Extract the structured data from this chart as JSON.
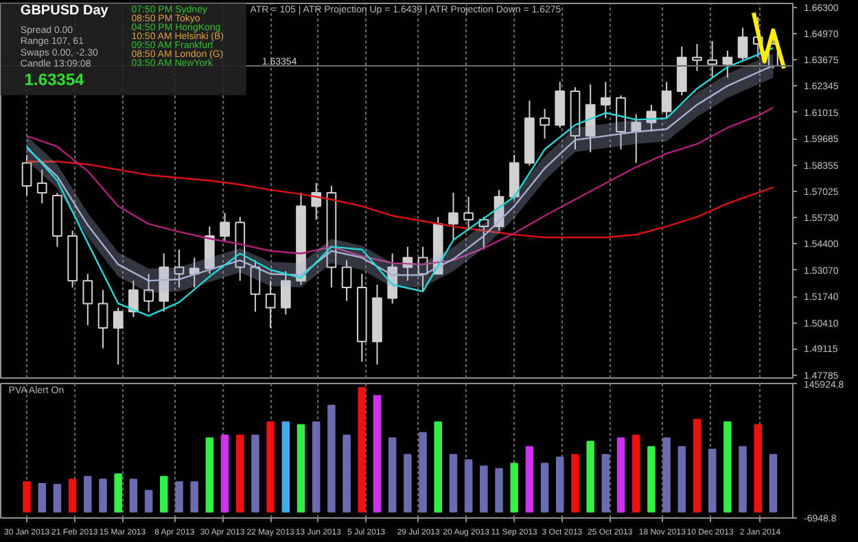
{
  "chart_data": [
    {
      "type": "candlestick",
      "title": "GBPUSD  Day",
      "annotations": [
        "ATR = 105  |  ATR Projection Up = 1.6439  |  ATR Projection Down = 1.6275",
        "Spread   0.00",
        "Range   107, 61",
        "Swaps   0.00, -2.30",
        "Candle   13:09:08",
        "1.63354",
        "07:50 PM   Sydney",
        "08:50 PM   Tokyo",
        "04:50 PM   HongKong",
        "10:50 AM   Helsinki  (B)",
        "09:50 AM   Frankfurt",
        "08:50 AM   London  (G)",
        "03:50 AM   NewYork"
      ],
      "color": "#d0d0d0",
      "x": [
        "2013-01-30",
        "2013-02-06",
        "2013-02-13",
        "2013-02-20",
        "2013-02-27",
        "2013-03-06",
        "2013-03-13",
        "2013-03-20",
        "2013-03-27",
        "2013-04-03",
        "2013-04-10",
        "2013-04-17",
        "2013-04-24",
        "2013-05-01",
        "2013-05-08",
        "2013-05-15",
        "2013-05-22",
        "2013-05-29",
        "2013-06-05",
        "2013-06-12",
        "2013-06-19",
        "2013-06-26",
        "2013-07-03",
        "2013-07-10",
        "2013-07-17",
        "2013-07-24",
        "2013-07-31",
        "2013-08-07",
        "2013-08-14",
        "2013-08-21",
        "2013-08-28",
        "2013-09-04",
        "2013-09-11",
        "2013-09-18",
        "2013-09-25",
        "2013-10-02",
        "2013-10-09",
        "2013-10-16",
        "2013-10-23",
        "2013-10-30",
        "2013-11-06",
        "2013-11-13",
        "2013-11-20",
        "2013-11-27",
        "2013-12-04",
        "2013-12-11",
        "2013-12-18",
        "2013-12-25",
        "2014-01-01",
        "2014-01-08"
      ],
      "ohlc": [
        [
          1.5847,
          1.5888,
          1.5683,
          1.5731
        ],
        [
          1.5745,
          1.5813,
          1.5643,
          1.5697
        ],
        [
          1.5683,
          1.5697,
          1.5425,
          1.5479
        ],
        [
          1.5479,
          1.5506,
          1.522,
          1.5254
        ],
        [
          1.5254,
          1.5288,
          1.503,
          1.5139
        ],
        [
          1.5139,
          1.5207,
          1.4914,
          1.5016
        ],
        [
          1.5016,
          1.5118,
          1.4832,
          1.5098
        ],
        [
          1.5098,
          1.5254,
          1.5071,
          1.5207
        ],
        [
          1.5207,
          1.5288,
          1.5098,
          1.5152
        ],
        [
          1.5152,
          1.5391,
          1.5098,
          1.5322
        ],
        [
          1.5322,
          1.5411,
          1.522,
          1.5288
        ],
        [
          1.5288,
          1.537,
          1.522,
          1.5316
        ],
        [
          1.5316,
          1.5527,
          1.5288,
          1.5479
        ],
        [
          1.5479,
          1.5595,
          1.5452,
          1.5547
        ],
        [
          1.5547,
          1.5575,
          1.5254,
          1.5322
        ],
        [
          1.5322,
          1.5357,
          1.5098,
          1.5186
        ],
        [
          1.5186,
          1.5254,
          1.5016,
          1.5118
        ],
        [
          1.5118,
          1.5302,
          1.5084,
          1.5254
        ],
        [
          1.5254,
          1.5697,
          1.5234,
          1.5629
        ],
        [
          1.5629,
          1.5745,
          1.5561,
          1.5697
        ],
        [
          1.5697,
          1.5731,
          1.522,
          1.5322
        ],
        [
          1.5322,
          1.5357,
          1.5152,
          1.522
        ],
        [
          1.522,
          1.5288,
          1.4846,
          1.4948
        ],
        [
          1.4948,
          1.5234,
          1.4832,
          1.5166
        ],
        [
          1.5166,
          1.5391,
          1.5139,
          1.5322
        ],
        [
          1.5322,
          1.5425,
          1.5254,
          1.537
        ],
        [
          1.537,
          1.5425,
          1.52,
          1.5288
        ],
        [
          1.5288,
          1.5575,
          1.5288,
          1.554
        ],
        [
          1.554,
          1.5697,
          1.5459,
          1.5595
        ],
        [
          1.5595,
          1.5677,
          1.5506,
          1.5561
        ],
        [
          1.5561,
          1.5575,
          1.5411,
          1.5527
        ],
        [
          1.5527,
          1.5711,
          1.5506,
          1.5677
        ],
        [
          1.5677,
          1.5888,
          1.5663,
          1.5847
        ],
        [
          1.5847,
          1.616,
          1.5833,
          1.6072
        ],
        [
          1.6072,
          1.6119,
          1.5969,
          1.6038
        ],
        [
          1.6038,
          1.6255,
          1.6024,
          1.6208
        ],
        [
          1.6208,
          1.6228,
          1.5915,
          1.5983
        ],
        [
          1.5983,
          1.6242,
          1.5901,
          1.614
        ],
        [
          1.614,
          1.6255,
          1.6072,
          1.6174
        ],
        [
          1.6174,
          1.6187,
          1.5915,
          1.6004
        ],
        [
          1.6004,
          1.6092,
          1.5847,
          1.6051
        ],
        [
          1.6051,
          1.614,
          1.6004,
          1.6106
        ],
        [
          1.6106,
          1.6255,
          1.6072,
          1.6208
        ],
        [
          1.6208,
          1.6432,
          1.6187,
          1.6378
        ],
        [
          1.6378,
          1.6446,
          1.631,
          1.6364
        ],
        [
          1.6364,
          1.646,
          1.6276,
          1.6344
        ],
        [
          1.6344,
          1.6412,
          1.6276,
          1.6378
        ],
        [
          1.6378,
          1.6528,
          1.6364,
          1.648
        ],
        [
          1.648,
          1.6582,
          1.6378,
          1.6446
        ],
        [
          1.6446,
          1.648,
          1.6323,
          1.63354
        ]
      ],
      "series": [
        {
          "type": "line",
          "color": "#dd1111",
          "x": [
            "2013-01-30",
            "2013-02-13",
            "2013-02-27",
            "2013-03-13",
            "2013-03-27",
            "2013-04-10",
            "2013-04-24",
            "2013-05-08",
            "2013-05-22",
            "2013-06-05",
            "2013-06-19",
            "2013-07-03",
            "2013-07-17",
            "2013-07-31",
            "2013-08-14",
            "2013-08-28",
            "2013-09-11",
            "2013-09-25",
            "2013-10-09",
            "2013-10-23",
            "2013-11-06",
            "2013-11-20",
            "2013-12-04",
            "2013-12-18",
            "2014-01-01",
            "2014-01-08"
          ],
          "values": [
            1.5854,
            1.5854,
            1.584,
            1.5813,
            1.5786,
            1.5772,
            1.5758,
            1.5738,
            1.5711,
            1.569,
            1.5663,
            1.5629,
            1.5581,
            1.5554,
            1.5527,
            1.5506,
            1.5486,
            1.5472,
            1.5472,
            1.5472,
            1.5486,
            1.5527,
            1.5575,
            1.5643,
            1.5697,
            1.5724
          ]
        },
        {
          "type": "line",
          "color": "#b0207a",
          "x": [
            "2013-01-30",
            "2013-02-13",
            "2013-02-27",
            "2013-03-13",
            "2013-03-27",
            "2013-04-10",
            "2013-04-24",
            "2013-05-08",
            "2013-05-22",
            "2013-06-05",
            "2013-06-19",
            "2013-07-03",
            "2013-07-17",
            "2013-07-31",
            "2013-08-14",
            "2013-08-28",
            "2013-09-11",
            "2013-09-25",
            "2013-10-09",
            "2013-10-23",
            "2013-11-06",
            "2013-11-20",
            "2013-12-04",
            "2013-12-18",
            "2014-01-01",
            "2014-01-08"
          ],
          "values": [
            1.5983,
            1.5929,
            1.5806,
            1.5629,
            1.554,
            1.55,
            1.5466,
            1.5438,
            1.5404,
            1.5391,
            1.5425,
            1.5377,
            1.5343,
            1.5336,
            1.5357,
            1.5418,
            1.5493,
            1.5581,
            1.5663,
            1.5745,
            1.5826,
            1.5894,
            1.5942,
            1.6024,
            1.6085,
            1.6126
          ]
        },
        {
          "type": "line",
          "color": "#a8b0d0",
          "x": [
            "2013-01-30",
            "2013-02-13",
            "2013-02-27",
            "2013-03-13",
            "2013-03-27",
            "2013-04-10",
            "2013-04-24",
            "2013-05-08",
            "2013-05-22",
            "2013-06-05",
            "2013-06-19",
            "2013-07-03",
            "2013-07-17",
            "2013-07-31",
            "2013-08-14",
            "2013-08-28",
            "2013-09-11",
            "2013-09-25",
            "2013-10-09",
            "2013-10-23",
            "2013-11-06",
            "2013-11-20",
            "2013-12-04",
            "2013-12-18",
            "2014-01-01",
            "2014-01-08"
          ],
          "values": [
            1.5922,
            1.5779,
            1.5534,
            1.5336,
            1.5254,
            1.5261,
            1.5309,
            1.5357,
            1.5288,
            1.5282,
            1.5404,
            1.537,
            1.5282,
            1.5282,
            1.5363,
            1.5479,
            1.5629,
            1.582,
            1.5963,
            1.5983,
            1.6004,
            1.6017,
            1.614,
            1.6235,
            1.6303,
            1.6337
          ],
          "lower": [
            1.5861,
            1.5718,
            1.5473,
            1.5275,
            1.5193,
            1.52,
            1.5248,
            1.5296,
            1.5227,
            1.5221,
            1.5343,
            1.5309,
            1.5221,
            1.5221,
            1.5302,
            1.5418,
            1.5568,
            1.5759,
            1.5902,
            1.5922,
            1.5943,
            1.5956,
            1.6079,
            1.6174,
            1.6242,
            1.6276
          ],
          "upper": [
            1.5983,
            1.584,
            1.5595,
            1.5397,
            1.5315,
            1.5322,
            1.537,
            1.5418,
            1.5349,
            1.5343,
            1.5465,
            1.5431,
            1.5343,
            1.5343,
            1.5424,
            1.554,
            1.569,
            1.5881,
            1.6024,
            1.6044,
            1.6065,
            1.6078,
            1.6201,
            1.6296,
            1.6364,
            1.6398
          ]
        },
        {
          "type": "line",
          "color": "#22d8d8",
          "x": [
            "2013-01-30",
            "2013-02-13",
            "2013-02-27",
            "2013-03-13",
            "2013-03-27",
            "2013-04-10",
            "2013-04-24",
            "2013-05-08",
            "2013-05-22",
            "2013-06-05",
            "2013-06-19",
            "2013-07-03",
            "2013-07-17",
            "2013-07-31",
            "2013-08-14",
            "2013-08-28",
            "2013-09-11",
            "2013-09-25",
            "2013-10-09",
            "2013-10-23",
            "2013-11-06",
            "2013-11-20",
            "2013-12-04",
            "2013-12-18",
            "2014-01-01",
            "2014-01-08"
          ],
          "values": [
            1.5929,
            1.5758,
            1.5445,
            1.5139,
            1.5077,
            1.5145,
            1.5275,
            1.5391,
            1.5309,
            1.5268,
            1.5425,
            1.5411,
            1.5234,
            1.52,
            1.5459,
            1.5568,
            1.5677,
            1.5915,
            1.6038,
            1.6099,
            1.6065,
            1.6072,
            1.6221,
            1.633,
            1.6392,
            1.6426
          ]
        },
        {
          "type": "line",
          "color": "#ffee00",
          "x": [
            "2013-12-30",
            "2014-01-04",
            "2014-01-08",
            "2014-01-13"
          ],
          "values": [
            1.6603,
            1.6358,
            1.6514,
            1.6323
          ]
        }
      ],
      "ref_lines": [
        {
          "axis": "y",
          "value": 1.63354,
          "label": "1.63354",
          "color": "#707070"
        }
      ],
      "xlim": [
        "2013-01-18",
        "2014-01-17"
      ],
      "xticks": [
        "2013-01-30",
        "2013-02-21",
        "2013-03-15",
        "2013-04-08",
        "2013-04-30",
        "2013-05-22",
        "2013-06-13",
        "2013-07-05",
        "2013-07-29",
        "2013-08-20",
        "2013-09-11",
        "2013-10-03",
        "2013-10-25",
        "2013-11-18",
        "2013-12-10",
        "2014-01-02"
      ],
      "ylim": [
        1.4764,
        1.665
      ],
      "yticks": [
        {
          "value": 1.663,
          "label": "1.66300"
        },
        {
          "value": 1.6497,
          "label": "1.64970"
        },
        {
          "value": 1.63675,
          "label": "1.63675"
        },
        {
          "value": 1.62345,
          "label": "1.62345"
        },
        {
          "value": 1.61015,
          "label": "1.61015"
        },
        {
          "value": 1.59685,
          "label": "1.59685"
        },
        {
          "value": 1.58355,
          "label": "1.58355"
        },
        {
          "value": 1.57025,
          "label": "1.57025"
        },
        {
          "value": 1.5573,
          "label": "1.55730"
        },
        {
          "value": 1.544,
          "label": "1.54400"
        },
        {
          "value": 1.5307,
          "label": "1.53070"
        },
        {
          "value": 1.5174,
          "label": "1.51740"
        },
        {
          "value": 1.5041,
          "label": "1.50410"
        },
        {
          "value": 1.49115,
          "label": "1.49115"
        },
        {
          "value": 1.47785,
          "label": "1.47785"
        }
      ],
      "grid": "x",
      "tick_labels": "y"
    },
    {
      "type": "bar",
      "annotations": [
        "PVA    Alert On"
      ],
      "x": [
        "2013-01-30",
        "2013-02-06",
        "2013-02-13",
        "2013-02-20",
        "2013-02-27",
        "2013-03-06",
        "2013-03-13",
        "2013-03-20",
        "2013-03-27",
        "2013-04-03",
        "2013-04-10",
        "2013-04-17",
        "2013-04-24",
        "2013-05-01",
        "2013-05-08",
        "2013-05-15",
        "2013-05-22",
        "2013-05-29",
        "2013-06-05",
        "2013-06-12",
        "2013-06-19",
        "2013-06-26",
        "2013-07-03",
        "2013-07-10",
        "2013-07-17",
        "2013-07-24",
        "2013-07-31",
        "2013-08-07",
        "2013-08-14",
        "2013-08-21",
        "2013-08-28",
        "2013-09-04",
        "2013-09-11",
        "2013-09-18",
        "2013-09-25",
        "2013-10-02",
        "2013-10-09",
        "2013-10-16",
        "2013-10-23",
        "2013-10-30",
        "2013-11-06",
        "2013-11-13",
        "2013-11-20",
        "2013-11-27",
        "2013-12-04",
        "2013-12-11",
        "2013-12-18",
        "2013-12-25",
        "2014-01-01",
        "2014-01-08"
      ],
      "values": [
        34000,
        32000,
        31000,
        37000,
        40000,
        37000,
        43000,
        37000,
        24000,
        40000,
        34000,
        34000,
        84000,
        87000,
        87000,
        87000,
        102000,
        102000,
        99000,
        102000,
        121000,
        87000,
        141000,
        132000,
        84000,
        65000,
        90000,
        102000,
        65000,
        59000,
        52000,
        49000,
        55000,
        74000,
        55000,
        62000,
        65000,
        80000,
        65000,
        84000,
        87000,
        74000,
        84000,
        74000,
        105000,
        71000,
        102000,
        74000,
        99000,
        65000
      ],
      "colors": [
        "#ee1111",
        "#6b6bb0",
        "#6b6bb0",
        "#ee1111",
        "#6b6bb0",
        "#6b6bb0",
        "#33ee44",
        "#6b6bb0",
        "#6b6bb0",
        "#33ee44",
        "#6b6bb0",
        "#6b6bb0",
        "#33ee44",
        "#cc33ee",
        "#ee1111",
        "#6b6bb0",
        "#ee1111",
        "#44aaee",
        "#33ee44",
        "#6b6bb0",
        "#6b6bb0",
        "#6b6bb0",
        "#ee1111",
        "#cc33ee",
        "#6b6bb0",
        "#6b6bb0",
        "#6b6bb0",
        "#33ee44",
        "#6b6bb0",
        "#6b6bb0",
        "#6b6bb0",
        "#6b6bb0",
        "#33ee44",
        "#cc33ee",
        "#6b6bb0",
        "#6b6bb0",
        "#ee1111",
        "#33ee44",
        "#6b6bb0",
        "#cc33ee",
        "#ee1111",
        "#33ee44",
        "#6b6bb0",
        "#6b6bb0",
        "#ee1111",
        "#6b6bb0",
        "#33ee44",
        "#6b6bb0",
        "#ee1111",
        "#6b6bb0"
      ],
      "xlim": [
        "2013-01-18",
        "2014-01-17"
      ],
      "xticks": [
        {
          "value": "2013-01-30",
          "label": "30 Jan 2013"
        },
        {
          "value": "2013-02-21",
          "label": "21 Feb 2013"
        },
        {
          "value": "2013-03-15",
          "label": "15 Mar 2013"
        },
        {
          "value": "2013-04-08",
          "label": "8 Apr 2013"
        },
        {
          "value": "2013-04-30",
          "label": "30 Apr 2013"
        },
        {
          "value": "2013-05-22",
          "label": "22 May 2013"
        },
        {
          "value": "2013-06-13",
          "label": "13 Jun 2013"
        },
        {
          "value": "2013-07-05",
          "label": "5 Jul 2013"
        },
        {
          "value": "2013-07-29",
          "label": "29 Jul 2013"
        },
        {
          "value": "2013-08-20",
          "label": "20 Aug 2013"
        },
        {
          "value": "2013-09-11",
          "label": "11 Sep 2013"
        },
        {
          "value": "2013-10-03",
          "label": "3 Oct 2013"
        },
        {
          "value": "2013-10-25",
          "label": "25 Oct 2013"
        },
        {
          "value": "2013-11-18",
          "label": "18 Nov 2013"
        },
        {
          "value": "2013-12-10",
          "label": "10 Dec 2013"
        },
        {
          "value": "2014-01-02",
          "label": "2 Jan 2014"
        }
      ],
      "ylim": [
        -6948.8,
        145924.8
      ],
      "yticks": [
        145924.8,
        -6948.8
      ],
      "grid": "x"
    }
  ]
}
